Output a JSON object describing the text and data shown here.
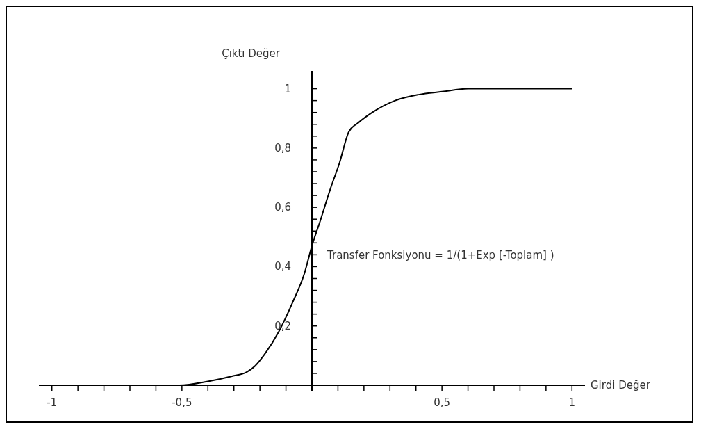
{
  "chart_data": {
    "type": "line",
    "xlabel": "Girdi Değer",
    "ylabel": "Çıktı Değer",
    "annotations": [
      "Transfer Fonksiyonu = 1/(1+Exp [-Toplam] )"
    ],
    "series": [
      {
        "color": "#000000",
        "x": [
          -1,
          -0.8,
          -0.6,
          -0.51,
          -0.4,
          -0.31,
          -0.25,
          -0.22,
          -0.18,
          -0.128,
          -0.074,
          -0.029,
          0,
          0.034,
          0.07,
          0.106,
          0.142,
          0.178,
          0.232,
          0.32,
          0.41,
          0.5,
          0.6,
          0.8,
          1
        ],
        "values": [
          0,
          0,
          0,
          0,
          0.013,
          0.03,
          0.045,
          0.064,
          0.107,
          0.18,
          0.28,
          0.377,
          0.47,
          0.56,
          0.66,
          0.75,
          0.855,
          0.885,
          0.92,
          0.96,
          0.98,
          0.99,
          1,
          1,
          1
        ]
      }
    ],
    "xlim": [
      -1.05,
      1.05
    ],
    "ylim": [
      0,
      1.06
    ],
    "xticks": [
      {
        "value": -1,
        "label": "-1"
      },
      {
        "value": -0.9,
        "label": null
      },
      {
        "value": -0.8,
        "label": null
      },
      {
        "value": -0.7,
        "label": null
      },
      {
        "value": -0.6,
        "label": null
      },
      {
        "value": -0.5,
        "label": "-0,5"
      },
      {
        "value": -0.4,
        "label": null
      },
      {
        "value": -0.3,
        "label": null
      },
      {
        "value": -0.2,
        "label": null
      },
      {
        "value": -0.1,
        "label": null
      },
      {
        "value": 0.1,
        "label": null
      },
      {
        "value": 0.2,
        "label": null
      },
      {
        "value": 0.3,
        "label": null
      },
      {
        "value": 0.4,
        "label": null
      },
      {
        "value": 0.5,
        "label": "0,5"
      },
      {
        "value": 0.6,
        "label": null
      },
      {
        "value": 0.7,
        "label": null
      },
      {
        "value": 0.8,
        "label": null
      },
      {
        "value": 0.9,
        "label": null
      },
      {
        "value": 1,
        "label": "1"
      }
    ],
    "yticks": [
      {
        "value": 0.04,
        "label": null
      },
      {
        "value": 0.08,
        "label": null
      },
      {
        "value": 0.12,
        "label": null
      },
      {
        "value": 0.16,
        "label": null
      },
      {
        "value": 0.2,
        "label": "0,2"
      },
      {
        "value": 0.24,
        "label": null
      },
      {
        "value": 0.28,
        "label": null
      },
      {
        "value": 0.32,
        "label": null
      },
      {
        "value": 0.36,
        "label": null
      },
      {
        "value": 0.4,
        "label": "0,4"
      },
      {
        "value": 0.44,
        "label": null
      },
      {
        "value": 0.48,
        "label": null
      },
      {
        "value": 0.52,
        "label": null
      },
      {
        "value": 0.56,
        "label": null
      },
      {
        "value": 0.6,
        "label": "0,6"
      },
      {
        "value": 0.64,
        "label": null
      },
      {
        "value": 0.68,
        "label": null
      },
      {
        "value": 0.72,
        "label": null
      },
      {
        "value": 0.76,
        "label": null
      },
      {
        "value": 0.8,
        "label": "0,8"
      },
      {
        "value": 0.84,
        "label": null
      },
      {
        "value": 0.88,
        "label": null
      },
      {
        "value": 0.92,
        "label": null
      },
      {
        "value": 0.96,
        "label": null
      },
      {
        "value": 1,
        "label": "1"
      }
    ],
    "grid": false,
    "legend": false,
    "marker": "none",
    "line_style": "solid"
  }
}
